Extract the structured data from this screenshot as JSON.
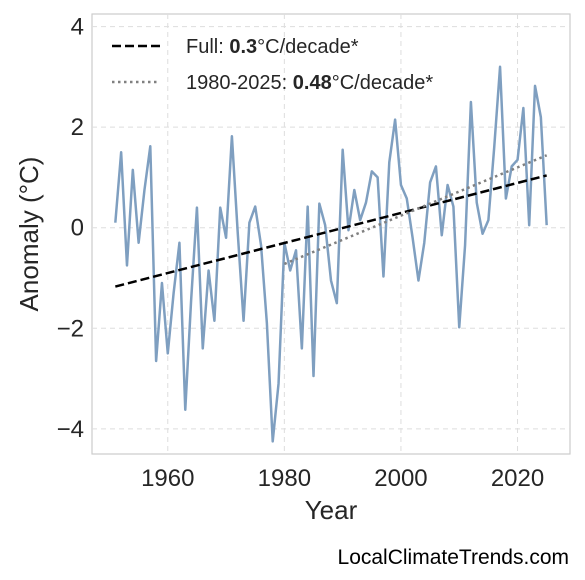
{
  "chart_data": {
    "type": "line",
    "xlabel": "Year",
    "ylabel": "Anomaly (°C)",
    "xlim": [
      1947,
      2029
    ],
    "ylim": [
      -4.5,
      4.25
    ],
    "x_ticks": [
      1960,
      1980,
      2000,
      2020
    ],
    "y_ticks": [
      -4,
      -2,
      0,
      2,
      4
    ],
    "y_tick_labels": [
      "−4",
      "−2",
      "0",
      "2",
      "4"
    ],
    "grid": true,
    "legend_position": "top-left",
    "series": [
      {
        "x": [
          1951,
          1952,
          1953,
          1954,
          1955,
          1956,
          1957,
          1958,
          1959,
          1960,
          1961,
          1962,
          1963,
          1964,
          1965,
          1966,
          1967,
          1968,
          1969,
          1970,
          1971,
          1972,
          1973,
          1974,
          1975,
          1976,
          1977,
          1978,
          1979,
          1980,
          1981,
          1982,
          1983,
          1984,
          1985,
          1986,
          1987,
          1988,
          1989,
          1990,
          1991,
          1992,
          1993,
          1994,
          1995,
          1996,
          1997,
          1998,
          1999,
          2000,
          2001,
          2002,
          2003,
          2004,
          2005,
          2006,
          2007,
          2008,
          2009,
          2010,
          2011,
          2012,
          2013,
          2014,
          2015,
          2016,
          2017,
          2018,
          2019,
          2020,
          2021,
          2022,
          2023,
          2024,
          2025
        ],
        "values": [
          0.1,
          1.5,
          -0.75,
          1.15,
          -0.3,
          0.75,
          1.62,
          -2.65,
          -1.1,
          -2.5,
          -1.3,
          -0.3,
          -3.62,
          -1.45,
          0.4,
          -2.4,
          -0.85,
          -1.85,
          0.4,
          -0.2,
          1.82,
          -0.1,
          -1.85,
          0.1,
          0.42,
          -0.35,
          -1.9,
          -4.25,
          -3.1,
          -0.3,
          -0.85,
          -0.45,
          -2.4,
          0.42,
          -2.95,
          0.48,
          0.05,
          -1.05,
          -1.5,
          1.55,
          -0.05,
          0.75,
          0.15,
          0.5,
          1.12,
          1.0,
          -0.97,
          1.3,
          2.15,
          0.85,
          0.58,
          -0.2,
          -1.05,
          -0.3,
          0.9,
          1.22,
          -0.15,
          0.85,
          0.42,
          -1.98,
          -0.35,
          2.5,
          0.5,
          -0.12,
          0.15,
          1.6,
          3.2,
          0.58,
          1.22,
          1.35,
          2.38,
          0.05,
          2.82,
          2.2,
          0.05
        ],
        "color": "#7f9fc0"
      },
      {
        "name_prefix": "Full: ",
        "rate": "0.3",
        "name_suffix": "°C/decade*",
        "x": [
          1951,
          2025
        ],
        "values": [
          -1.17,
          1.04
        ],
        "color": "#000000",
        "style": "dashed"
      },
      {
        "name_prefix": "1980-2025: ",
        "rate": "0.48",
        "name_suffix": "°C/decade*",
        "x": [
          1980,
          2025
        ],
        "values": [
          -0.72,
          1.44
        ],
        "color": "#808080",
        "style": "dotted"
      }
    ]
  },
  "credit": "LocalClimateTrends.com"
}
